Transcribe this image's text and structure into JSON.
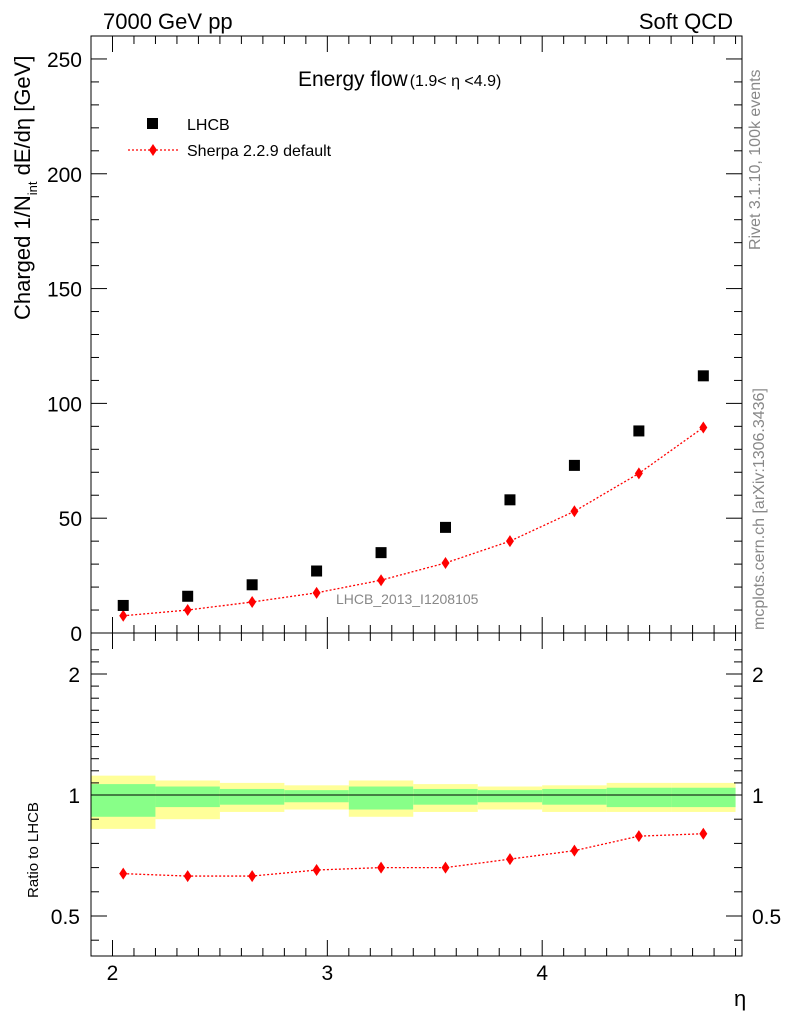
{
  "header": {
    "left": "7000 GeV pp",
    "right": "Soft QCD"
  },
  "side_texts": {
    "rivet": "Rivet 3.1.10,  100k events",
    "mcplots": "mcplots.cern.ch [arXiv:1306.3436]"
  },
  "chart_data": [
    {
      "type": "scatter",
      "panel": "main",
      "title_main": "Energy flow",
      "title_sub": "(1.9< η <4.9)",
      "ylabel_part1": "Charged 1/N",
      "ylabel_sub": "int",
      "ylabel_part2": " dE/dη [GeV]",
      "ylim": [
        0,
        260
      ],
      "xlim": [
        1.9,
        4.93
      ],
      "yticks": [
        0,
        50,
        100,
        150,
        200,
        250
      ],
      "watermark": "LHCB_2013_I1208105",
      "legend_position": "top-left",
      "x": [
        2.05,
        2.35,
        2.65,
        2.95,
        3.25,
        3.55,
        3.85,
        4.15,
        4.45,
        4.75
      ],
      "series": [
        {
          "name": "LHCB",
          "marker": "square",
          "color": "#000000",
          "values": [
            12,
            16,
            21,
            27,
            35,
            46,
            58,
            73,
            88,
            112
          ]
        },
        {
          "name": "Sherpa 2.2.9 default",
          "marker": "diamond",
          "line": "dotted",
          "color": "#ff0000",
          "values": [
            7.5,
            10,
            13.5,
            17.5,
            23,
            30.5,
            40,
            53,
            69.5,
            89.5
          ]
        }
      ]
    },
    {
      "type": "line",
      "panel": "ratio",
      "ylabel": "Ratio to LHCB",
      "xlabel": "η",
      "ylim": [
        0.33,
        2.3
      ],
      "xlim": [
        1.9,
        4.93
      ],
      "xticks": [
        2,
        3,
        4
      ],
      "yticks": [
        0.5,
        1,
        2
      ],
      "x": [
        2.05,
        2.35,
        2.65,
        2.95,
        3.25,
        3.55,
        3.85,
        4.15,
        4.45,
        4.75
      ],
      "bins": [
        [
          1.9,
          2.2
        ],
        [
          2.2,
          2.5
        ],
        [
          2.5,
          2.8
        ],
        [
          2.8,
          3.1
        ],
        [
          3.1,
          3.4
        ],
        [
          3.4,
          3.7
        ],
        [
          3.7,
          4.0
        ],
        [
          4.0,
          4.3
        ],
        [
          4.3,
          4.6
        ],
        [
          4.6,
          4.9
        ]
      ],
      "band_inner": [
        [
          0.91,
          1.09
        ],
        [
          0.95,
          1.07
        ],
        [
          0.96,
          1.05
        ],
        [
          0.97,
          1.04
        ],
        [
          0.94,
          1.07
        ],
        [
          0.96,
          1.05
        ],
        [
          0.97,
          1.04
        ],
        [
          0.96,
          1.05
        ],
        [
          0.95,
          1.06
        ],
        [
          0.95,
          1.06
        ]
      ],
      "band_outer": [
        [
          0.86,
          1.16
        ],
        [
          0.9,
          1.12
        ],
        [
          0.93,
          1.1
        ],
        [
          0.94,
          1.08
        ],
        [
          0.91,
          1.12
        ],
        [
          0.93,
          1.09
        ],
        [
          0.94,
          1.07
        ],
        [
          0.93,
          1.08
        ],
        [
          0.93,
          1.1
        ],
        [
          0.93,
          1.1
        ]
      ],
      "band_inner_color": "#88ff88",
      "band_outer_color": "#ffff99",
      "reference_line": 1,
      "series": [
        {
          "name": "Sherpa 2.2.9 default",
          "marker": "diamond",
          "line": "dotted",
          "color": "#ff0000",
          "values": [
            0.675,
            0.665,
            0.665,
            0.69,
            0.7,
            0.7,
            0.735,
            0.77,
            0.83,
            0.84
          ]
        }
      ]
    }
  ]
}
